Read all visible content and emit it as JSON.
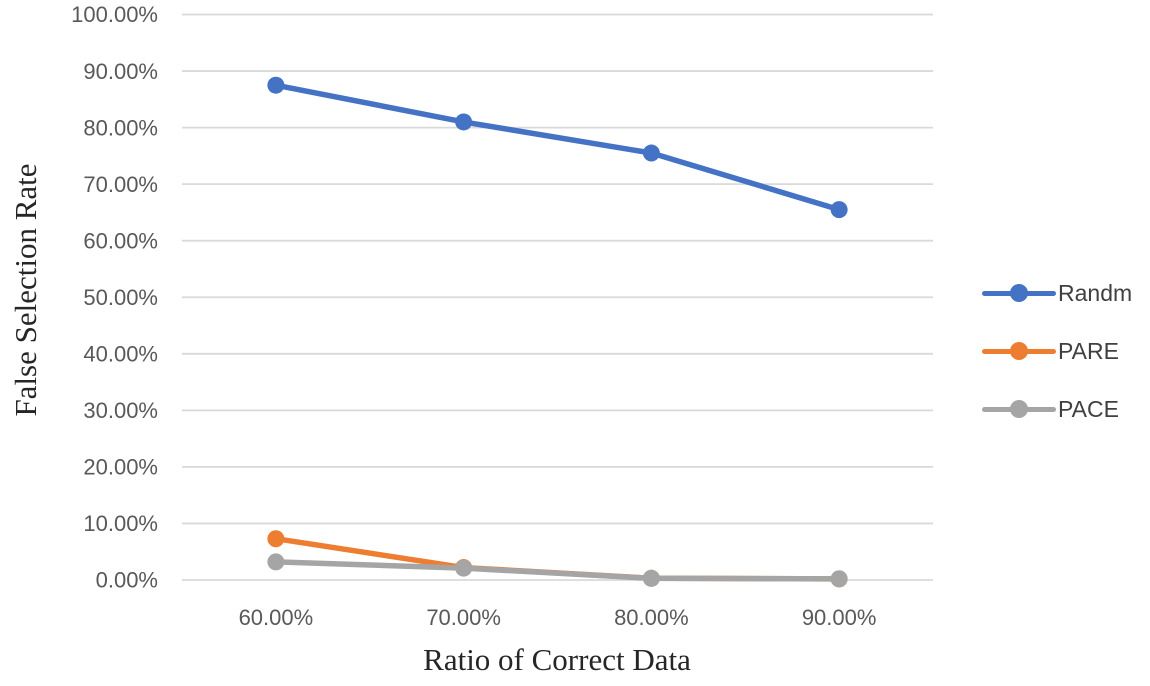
{
  "chart_data": {
    "type": "line",
    "title": "",
    "xlabel": "Ratio of Correct Data",
    "ylabel": "False Selection Rate",
    "categories": [
      "60.00%",
      "70.00%",
      "80.00%",
      "90.00%"
    ],
    "series": [
      {
        "name": "Randm",
        "color": "#4472C4",
        "values": [
          87.5,
          81.0,
          75.5,
          65.5
        ]
      },
      {
        "name": "PARE",
        "color": "#ED7D31",
        "values": [
          7.3,
          2.2,
          0.3,
          0.2
        ]
      },
      {
        "name": "PACE",
        "color": "#A5A5A5",
        "values": [
          3.2,
          2.1,
          0.3,
          0.2
        ]
      }
    ],
    "y_ticks": [
      "0.00%",
      "10.00%",
      "20.00%",
      "30.00%",
      "40.00%",
      "50.00%",
      "60.00%",
      "70.00%",
      "80.00%",
      "90.00%",
      "100.00%"
    ],
    "ylim": [
      0,
      100
    ],
    "grid": "horizontal",
    "grid_color": "#D9D9D9",
    "tick_label_color": "#595959",
    "legend_position": "right"
  }
}
